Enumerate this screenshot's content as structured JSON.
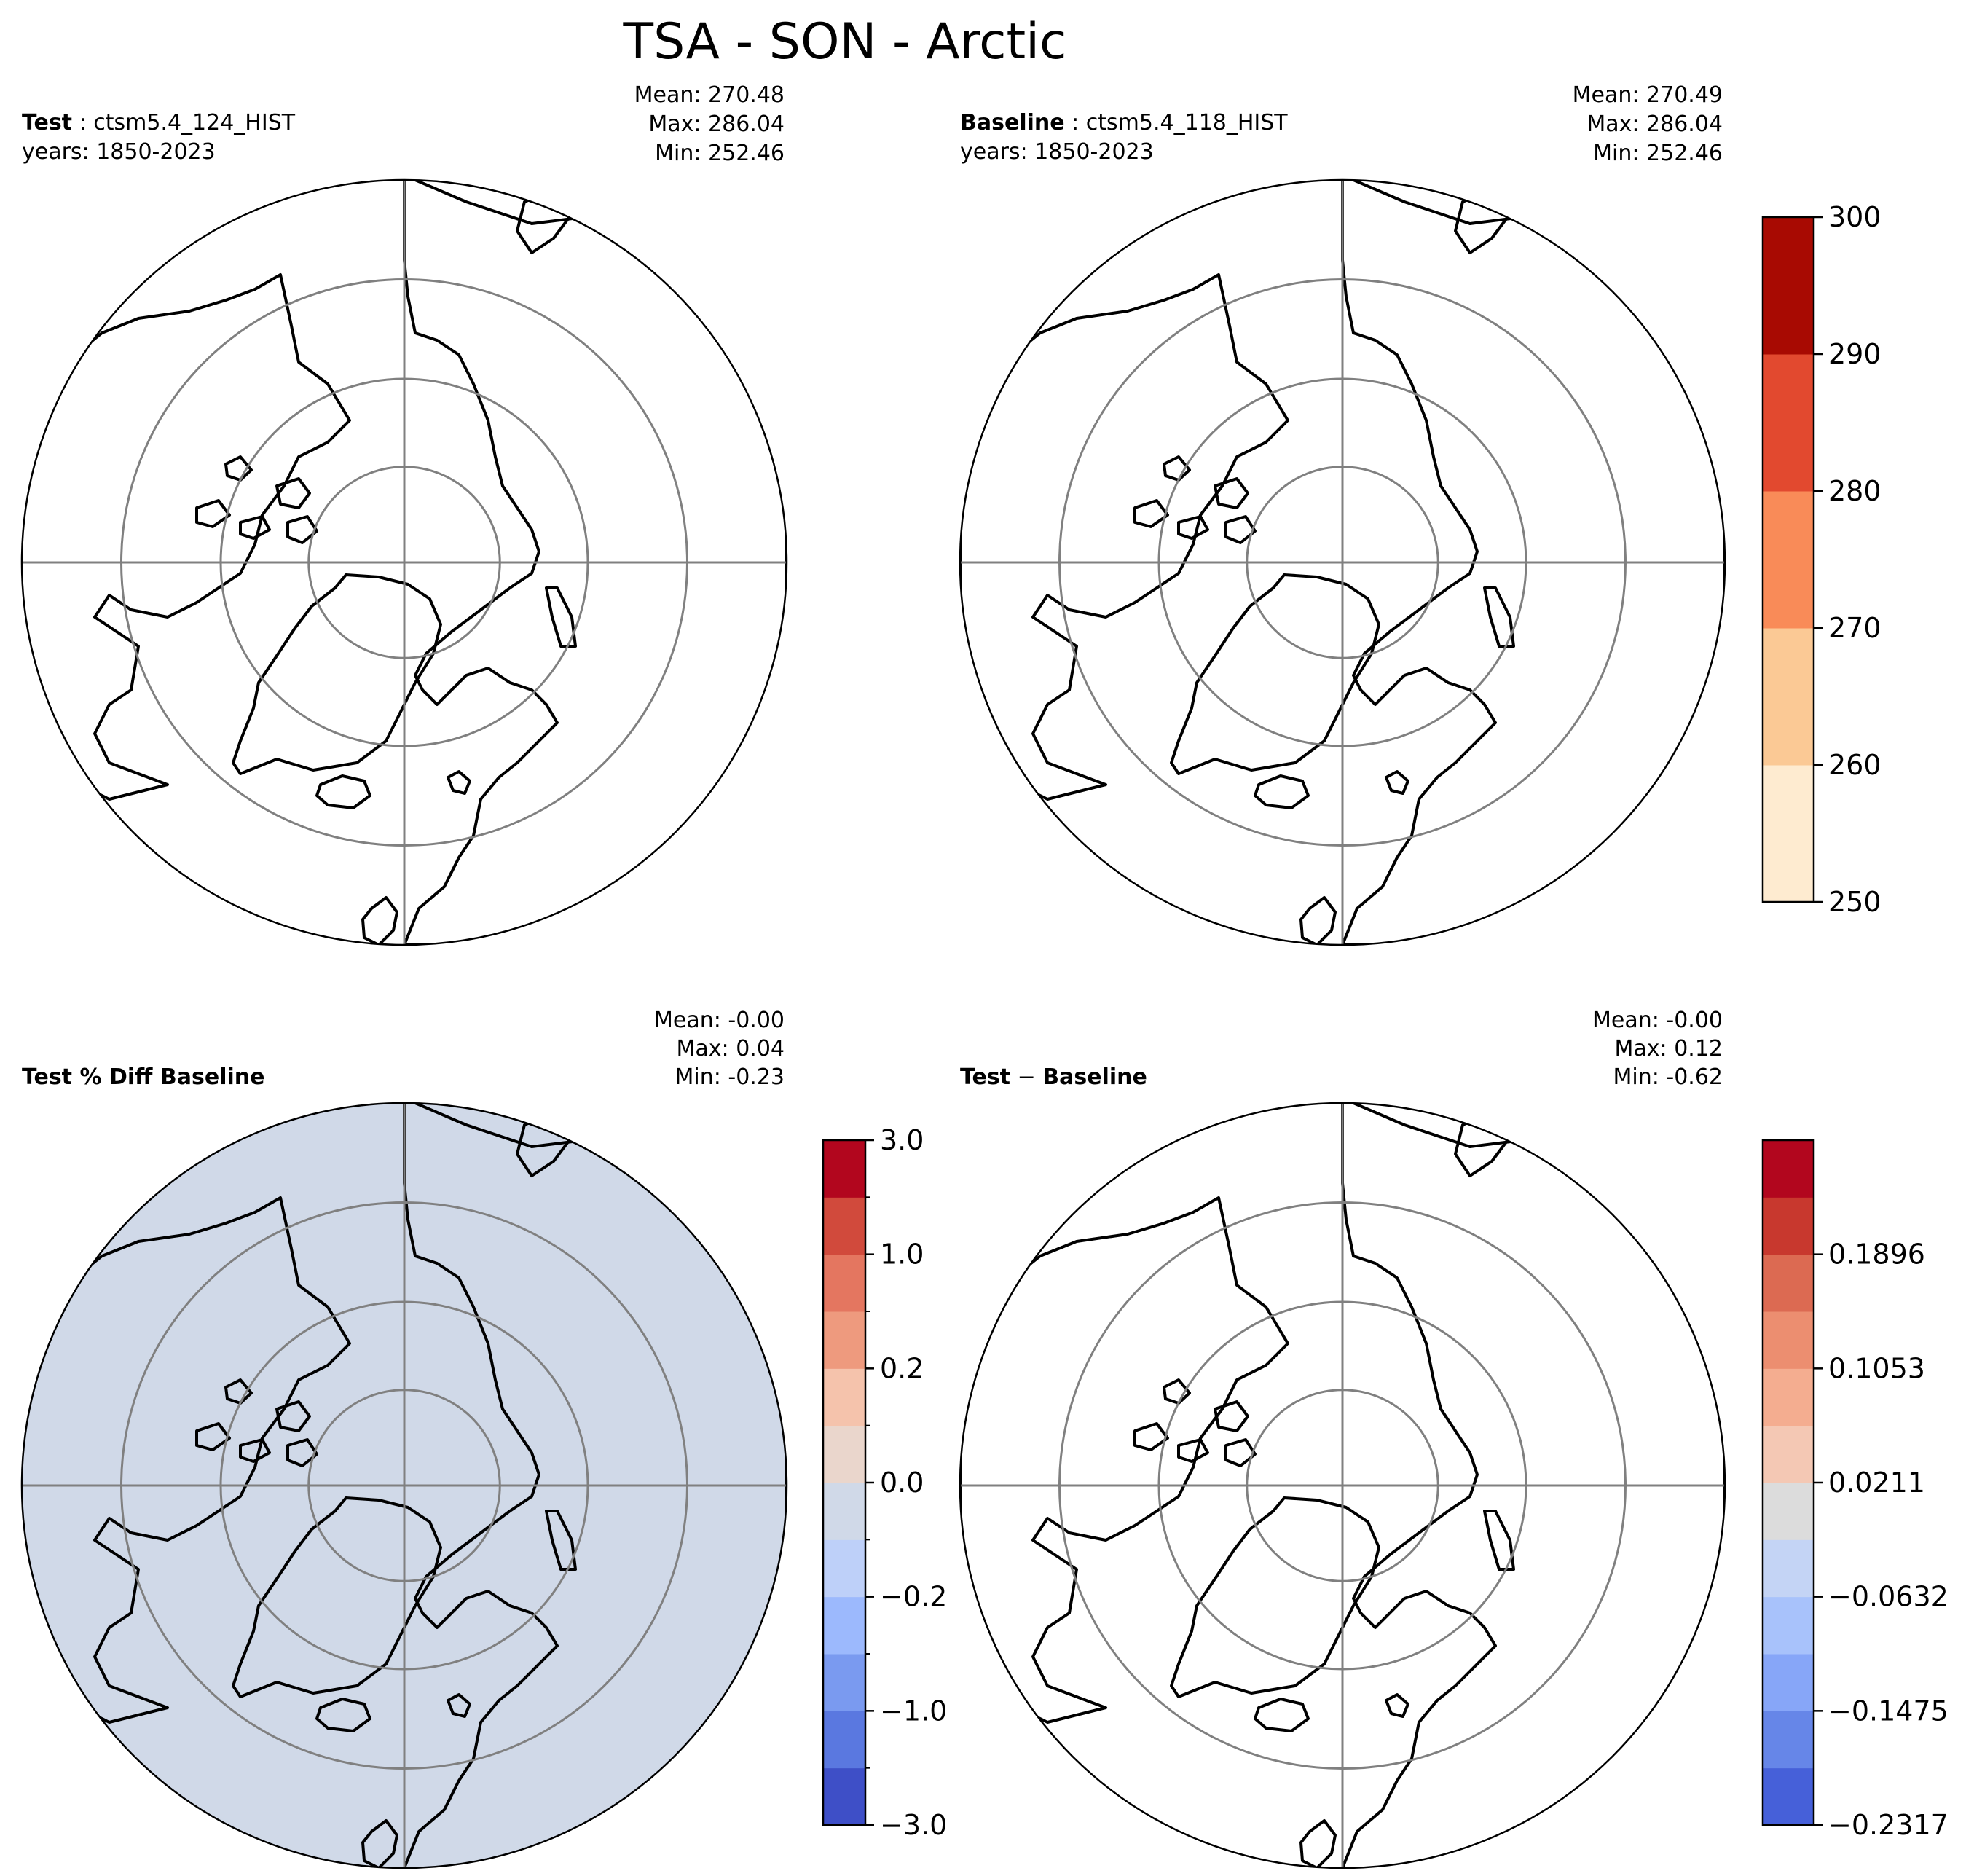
{
  "title": "TSA - SON - Arctic",
  "colors": {
    "ocean": "#ffffff",
    "coast": "#000000",
    "grid": "#808080",
    "ice": "#ffffff",
    "diff_mask": "#dcdcdc"
  },
  "chart_data": [
    {
      "type": "heatmap",
      "panel": "test",
      "label_bold": "Test",
      "label_sep": " : ",
      "label_value": "ctsm5.4_124_HIST",
      "years": "years: 1850-2023",
      "stats": [
        "Mean: 270.48",
        "Max: 286.04",
        "Min: 252.46"
      ],
      "mean": 270.48,
      "max": 286.04,
      "min": 252.46,
      "projection": "north polar stereographic"
    },
    {
      "type": "heatmap",
      "panel": "baseline",
      "label_bold": "Baseline",
      "label_sep": " : ",
      "label_value": "ctsm5.4_118_HIST",
      "years": "years: 1850-2023",
      "stats": [
        "Mean: 270.49",
        "Max: 286.04",
        "Min: 252.46"
      ],
      "mean": 270.49,
      "max": 286.04,
      "min": 252.46,
      "projection": "north polar stereographic"
    },
    {
      "type": "heatmap",
      "panel": "pct_diff",
      "label_bold": "Test % Diff Baseline",
      "stats": [
        "Mean: -0.00",
        "Max:  0.04",
        "Min: -0.23"
      ],
      "mean": -0.0,
      "max": 0.04,
      "min": -0.23,
      "projection": "north polar stereographic"
    },
    {
      "type": "heatmap",
      "panel": "diff",
      "label_bold_1": "Test",
      "label_minus": " − ",
      "label_bold_2": "Baseline",
      "stats": [
        "Mean: -0.00",
        "Max:  0.12",
        "Min: -0.62"
      ],
      "mean": -0.0,
      "max": 0.12,
      "min": -0.62,
      "projection": "north polar stereographic"
    }
  ],
  "colorbars": {
    "abs": {
      "levels": [
        250,
        260,
        270,
        280,
        290,
        300
      ],
      "tick_labels": [
        "250",
        "260",
        "270",
        "280",
        "290",
        "300"
      ],
      "colors": [
        "#feebd0",
        "#fbc995",
        "#f98b58",
        "#e2492f",
        "#a80a02"
      ]
    },
    "pct": {
      "levels": [
        -3.0,
        -2.0,
        -1.0,
        -0.5,
        -0.2,
        -0.1,
        0.0,
        0.1,
        0.2,
        0.5,
        1.0,
        2.0,
        3.0
      ],
      "tick_labels": [
        "−3.0",
        "−1.0",
        "−0.2",
        "0.0",
        "0.2",
        "1.0",
        "3.0"
      ],
      "tick_values": [
        -3.0,
        -1.0,
        -0.2,
        0.0,
        0.2,
        1.0,
        3.0
      ],
      "colors": [
        "#3e4fc7",
        "#5a78e0",
        "#7a9af0",
        "#9cb9fd",
        "#bed0f9",
        "#d0d9e8",
        "#ead6cc",
        "#f5c3ac",
        "#ee9a7e",
        "#e47660",
        "#d14a3c",
        "#b2061e"
      ]
    },
    "diff": {
      "n_bins": 12,
      "tick_labels": [
        "−0.2317",
        "−0.1475",
        "−0.0632",
        "0.0211",
        "0.1053",
        "0.1896"
      ],
      "tick_positions": [
        0.0,
        1.0,
        2.0,
        3.0,
        4.0,
        5.0
      ],
      "colors": [
        "#4660d9",
        "#6686e8",
        "#87a6f8",
        "#a8c2fb",
        "#c4d4f5",
        "#dcdcdc",
        "#f4c8b4",
        "#f4ad90",
        "#ec8e70",
        "#dc6a52",
        "#c8382e",
        "#b2061e"
      ]
    }
  }
}
